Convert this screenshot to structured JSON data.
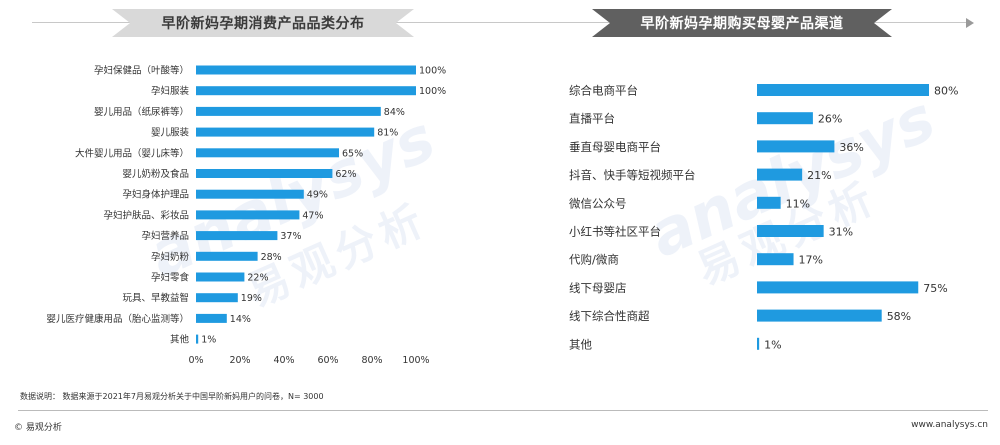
{
  "left_title": "早阶新妈孕期消费产品品类分布",
  "right_title": "早阶新妈孕期购买母婴产品渠道",
  "watermark_en": "analysys",
  "watermark_cn": "易观分析",
  "note": "数据说明： 数据来源于2021年7月易观分析关于中国早阶新妈用户的问卷，N= 3000",
  "footer_left": "© 易观分析",
  "footer_right": "www.analysys.cn",
  "colors": {
    "bar": "#1f9ae0",
    "text": "#333333"
  },
  "chart_data": [
    {
      "type": "bar",
      "orientation": "horizontal",
      "title": "早阶新妈孕期消费产品品类分布",
      "categories": [
        "孕妇保健品（叶酸等）",
        "孕妇服装",
        "婴儿用品（纸尿裤等）",
        "婴儿服装",
        "大件婴儿用品（婴儿床等）",
        "婴儿奶粉及食品",
        "孕妇身体护理品",
        "孕妇护肤品、彩妆品",
        "孕妇营养品",
        "孕妇奶粉",
        "孕妇零食",
        "玩具、早教益智",
        "婴儿医疗健康用品（胎心监测等）",
        "其他"
      ],
      "values": [
        100,
        100,
        84,
        81,
        65,
        62,
        49,
        47,
        37,
        28,
        22,
        19,
        14,
        1
      ],
      "value_labels": [
        "100%",
        "100%",
        "84%",
        "81%",
        "65%",
        "62%",
        "49%",
        "47%",
        "37%",
        "28%",
        "22%",
        "19%",
        "14%",
        "1%"
      ],
      "x_ticks": [
        "0%",
        "20%",
        "40%",
        "60%",
        "80%",
        "100%"
      ],
      "xlim": [
        0,
        100
      ],
      "grid": false
    },
    {
      "type": "bar",
      "orientation": "horizontal",
      "title": "早阶新妈孕期购买母婴产品渠道",
      "categories": [
        "综合电商平台",
        "直播平台",
        "垂直母婴电商平台",
        "抖音、快手等短视频平台",
        "微信公众号",
        "小红书等社区平台",
        "代购/微商",
        "线下母婴店",
        "线下综合性商超",
        "其他"
      ],
      "values": [
        80,
        26,
        36,
        21,
        11,
        31,
        17,
        75,
        58,
        1
      ],
      "value_labels": [
        "80%",
        "26%",
        "36%",
        "21%",
        "11%",
        "31%",
        "17%",
        "75%",
        "58%",
        "1%"
      ],
      "xlim": [
        0,
        100
      ],
      "grid": false
    }
  ]
}
